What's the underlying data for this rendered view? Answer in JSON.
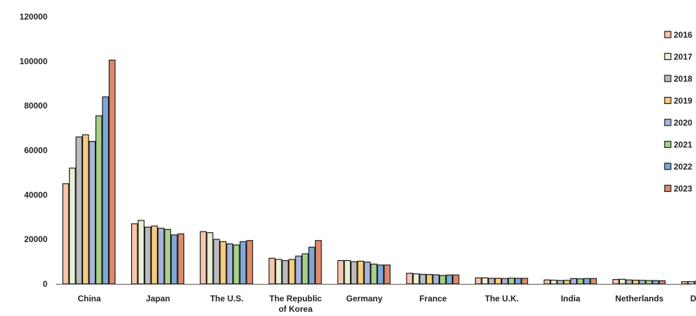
{
  "chart_data": {
    "type": "bar",
    "title": "",
    "xlabel": "",
    "ylabel": "",
    "ylim": [
      0,
      120000
    ],
    "yticks": [
      0,
      20000,
      40000,
      60000,
      80000,
      100000,
      120000
    ],
    "ytick_labels": [
      "0",
      "20000",
      "40000",
      "60000",
      "80000",
      "100000",
      "120000"
    ],
    "grid": false,
    "legend_position": "right",
    "categories": [
      [
        "China"
      ],
      [
        "Japan"
      ],
      [
        "The U.S."
      ],
      [
        "The Republic",
        "of Korea"
      ],
      [
        "Germany"
      ],
      [
        "France"
      ],
      [
        "The U.K."
      ],
      [
        "India"
      ],
      [
        "Netherlands"
      ],
      [
        "Denmark"
      ]
    ],
    "series": [
      {
        "name": "2016",
        "color": "#f7c6ab",
        "values": [
          45000,
          27000,
          23500,
          11500,
          10500,
          4800,
          2700,
          1800,
          2000,
          1000
        ]
      },
      {
        "name": "2017",
        "color": "#e9eed5",
        "values": [
          52000,
          28500,
          23000,
          11000,
          10500,
          4500,
          2700,
          1700,
          2100,
          1000
        ]
      },
      {
        "name": "2018",
        "color": "#bcbcbc",
        "values": [
          66000,
          25500,
          20000,
          10500,
          10000,
          4300,
          2500,
          1500,
          1800,
          1200
        ]
      },
      {
        "name": "2019",
        "color": "#f7cd7c",
        "values": [
          67000,
          26000,
          19000,
          11000,
          10200,
          4200,
          2500,
          1600,
          1700,
          1500
        ]
      },
      {
        "name": "2020",
        "color": "#a7b5d9",
        "values": [
          64000,
          25000,
          18000,
          12500,
          9800,
          4100,
          2400,
          2400,
          1600,
          1800
        ]
      },
      {
        "name": "2021",
        "color": "#a9d08a",
        "values": [
          75500,
          24500,
          17500,
          13500,
          8900,
          3800,
          2600,
          2300,
          1500,
          2000
        ]
      },
      {
        "name": "2022",
        "color": "#7fa8d8",
        "values": [
          84000,
          22000,
          19000,
          16500,
          8500,
          4000,
          2500,
          2400,
          1500,
          1500
        ]
      },
      {
        "name": "2023",
        "color": "#dd8a6c",
        "values": [
          100500,
          22500,
          19500,
          19500,
          8500,
          4000,
          2500,
          2400,
          1400,
          1600
        ]
      }
    ]
  }
}
